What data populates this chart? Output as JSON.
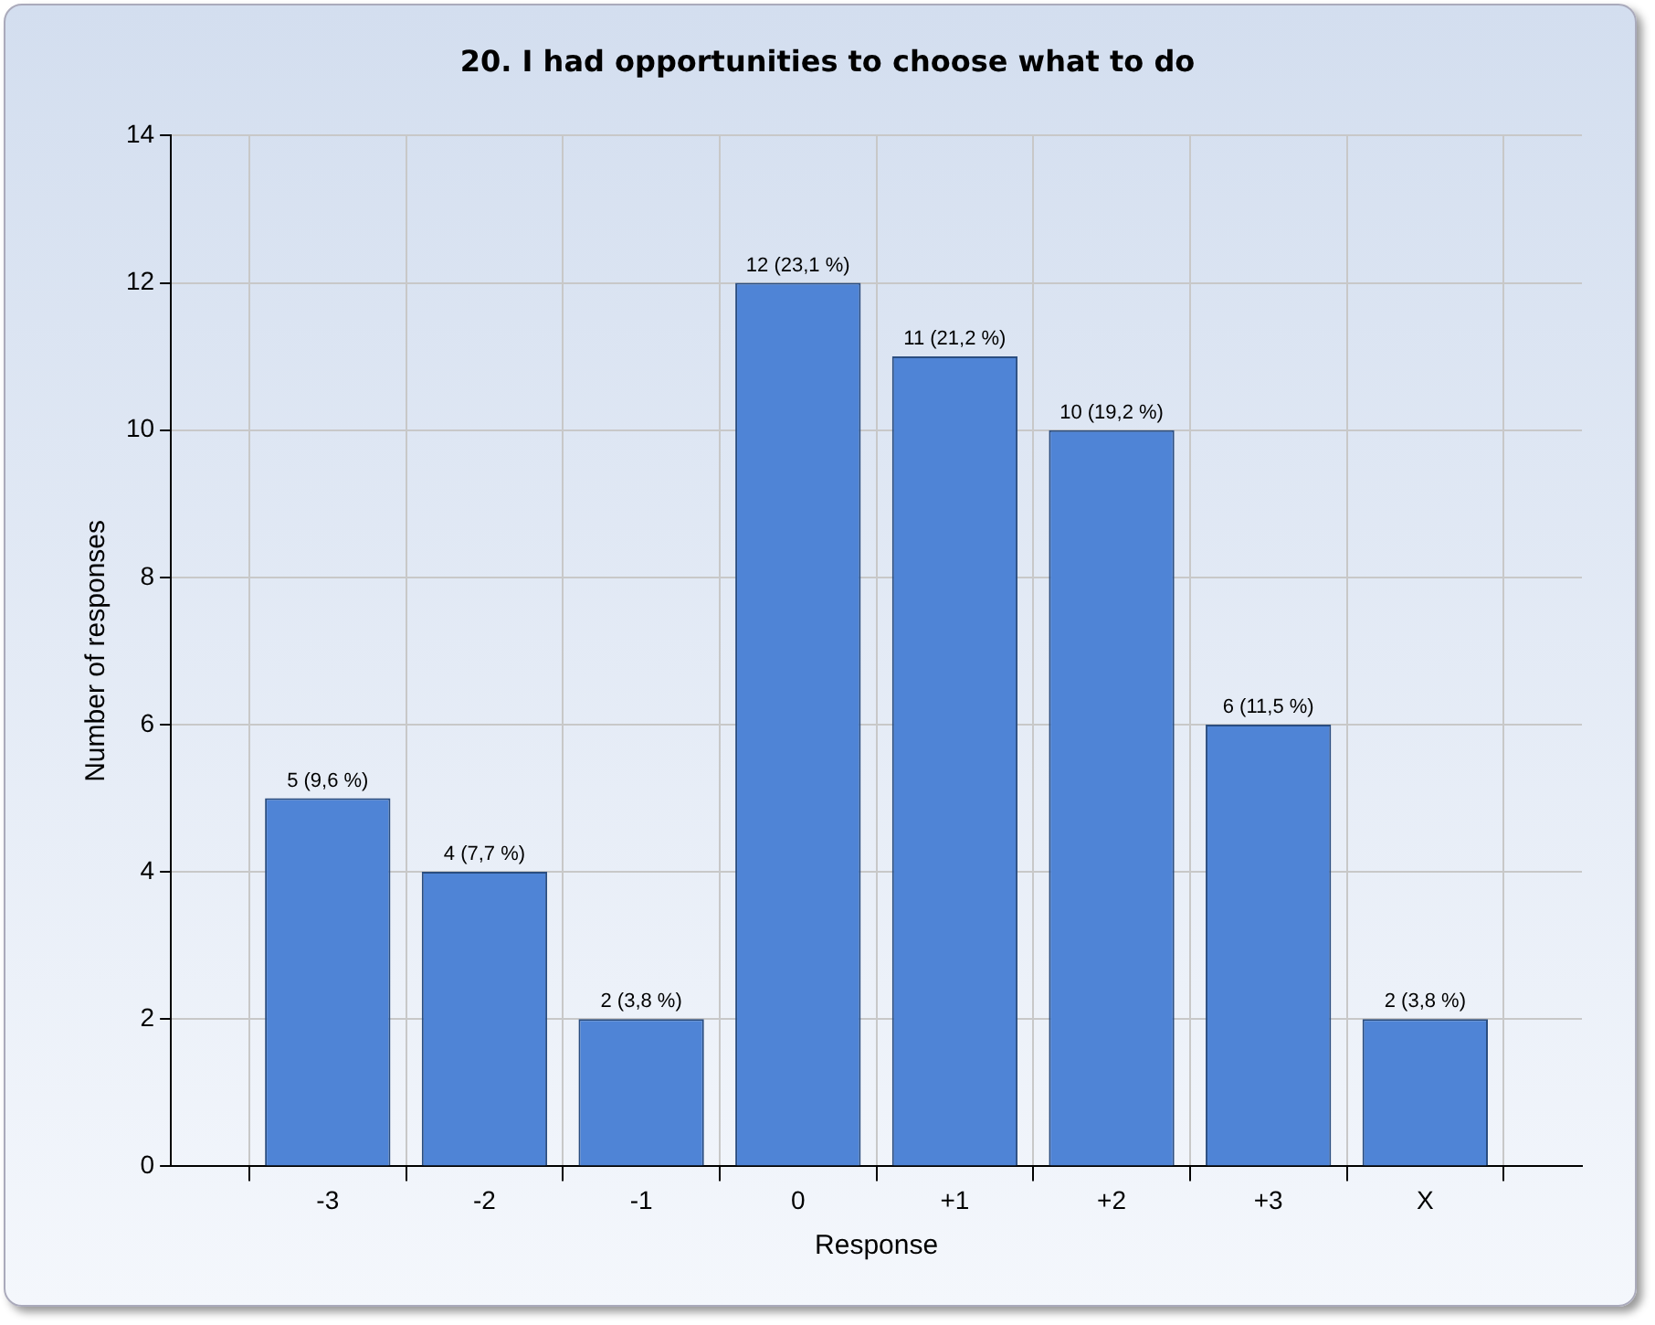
{
  "chart_data": {
    "type": "bar",
    "title": "20. I had opportunities to choose what to do",
    "xlabel": "Response",
    "ylabel": "Number of responses",
    "categories": [
      null,
      "-3",
      "-2",
      "-1",
      "0",
      "+1",
      "+2",
      "+3",
      "X",
      null
    ],
    "values": [
      null,
      5,
      4,
      2,
      12,
      11,
      10,
      6,
      2,
      null
    ],
    "value_labels": [
      null,
      "5 (9,6 %)",
      "4 (7,7 %)",
      "2 (3,8 %)",
      "12 (23,1 %)",
      "11 (21,2 %)",
      "10 (19,2 %)",
      "6 (11,5 %)",
      "2 (3,8 %)",
      null
    ],
    "color": "#4f84d6",
    "ylim": [
      0,
      14
    ],
    "yticks": [
      0,
      2,
      4,
      6,
      8,
      10,
      12,
      14
    ],
    "grid": true,
    "legend": false
  }
}
